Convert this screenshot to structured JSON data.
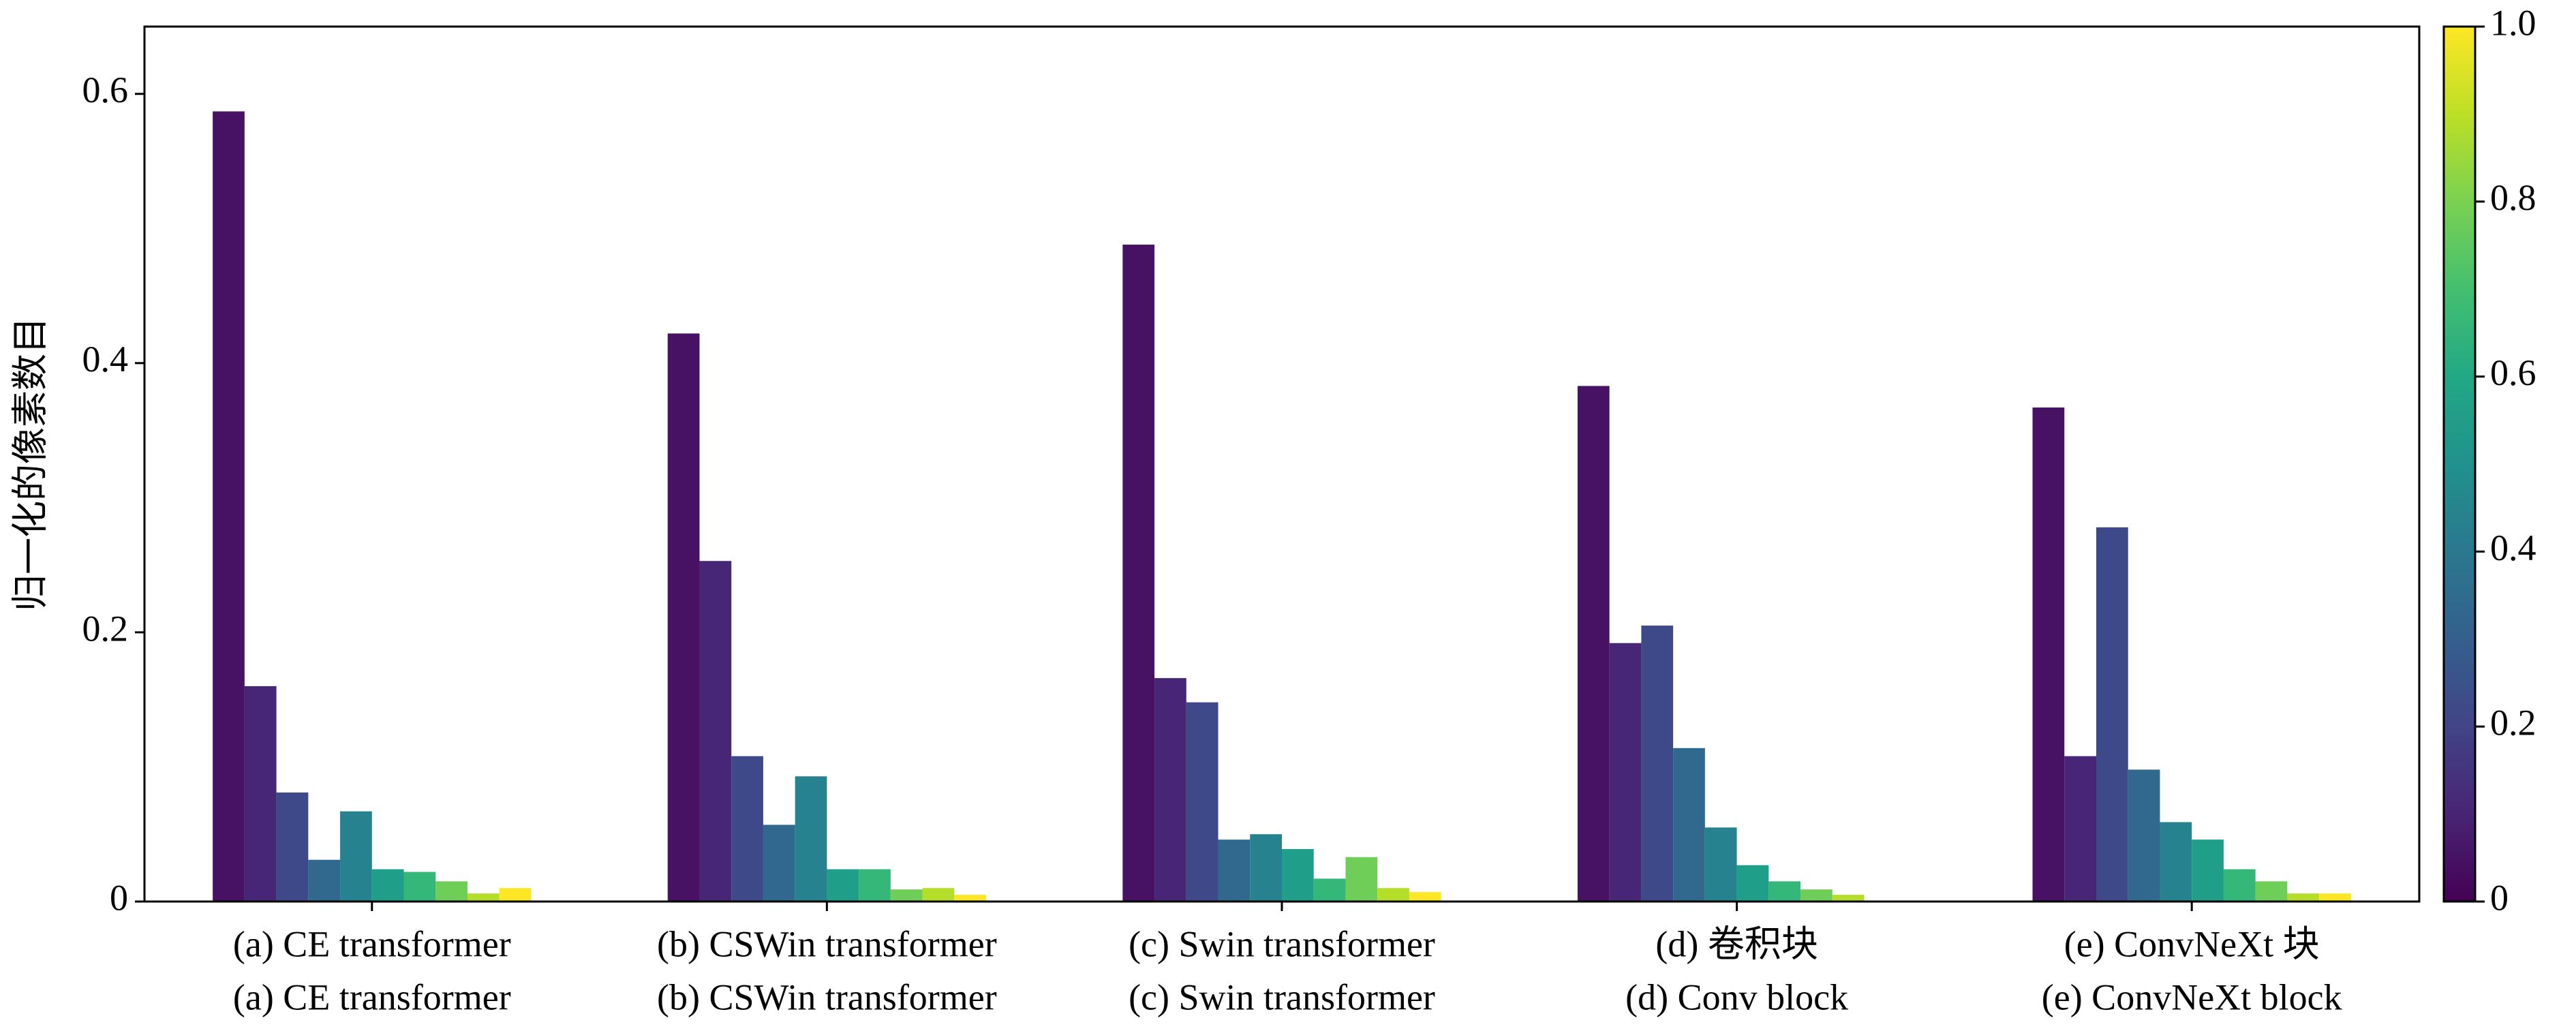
{
  "chart_data": {
    "type": "bar",
    "ylabel": "归一化的像素数目",
    "categories": [
      [
        "(a) CE transformer",
        "(a) CE transformer"
      ],
      [
        "(b) CSWin transformer",
        "(b) CSWin transformer"
      ],
      [
        "(c) Swin transformer",
        "(c) Swin transformer"
      ],
      [
        "(d) 卷积块",
        "(d) Conv block"
      ],
      [
        "(e) ConvNeXt 块",
        "(e) ConvNeXt block"
      ]
    ],
    "series": [
      {
        "color": "#471164",
        "values": [
          0.587,
          0.422,
          0.488,
          0.383,
          0.367
        ]
      },
      {
        "color": "#482677",
        "values": [
          0.16,
          0.253,
          0.166,
          0.192,
          0.108
        ]
      },
      {
        "color": "#3e4989",
        "values": [
          0.081,
          0.108,
          0.148,
          0.205,
          0.278
        ]
      },
      {
        "color": "#31688e",
        "values": [
          0.031,
          0.057,
          0.046,
          0.114,
          0.098
        ]
      },
      {
        "color": "#26828e",
        "values": [
          0.067,
          0.093,
          0.05,
          0.055,
          0.059
        ]
      },
      {
        "color": "#1f9e89",
        "values": [
          0.024,
          0.024,
          0.039,
          0.027,
          0.046
        ]
      },
      {
        "color": "#35b779",
        "values": [
          0.022,
          0.024,
          0.017,
          0.015,
          0.024
        ]
      },
      {
        "color": "#6ece58",
        "values": [
          0.015,
          0.009,
          0.033,
          0.009,
          0.015
        ]
      },
      {
        "color": "#b5de2b",
        "values": [
          0.006,
          0.01,
          0.01,
          0.005,
          0.006
        ]
      },
      {
        "color": "#fde725",
        "values": [
          0.01,
          0.005,
          0.007,
          0,
          0.006
        ]
      }
    ],
    "ylim": [
      0,
      0.65
    ],
    "yticks": [
      0,
      0.2,
      0.4,
      0.6
    ],
    "colorbar": {
      "lim": [
        0,
        1
      ],
      "ticks": [
        0,
        0.2,
        0.4,
        0.6,
        0.8,
        {
          "value": 1,
          "label": "1.0"
        }
      ]
    }
  }
}
